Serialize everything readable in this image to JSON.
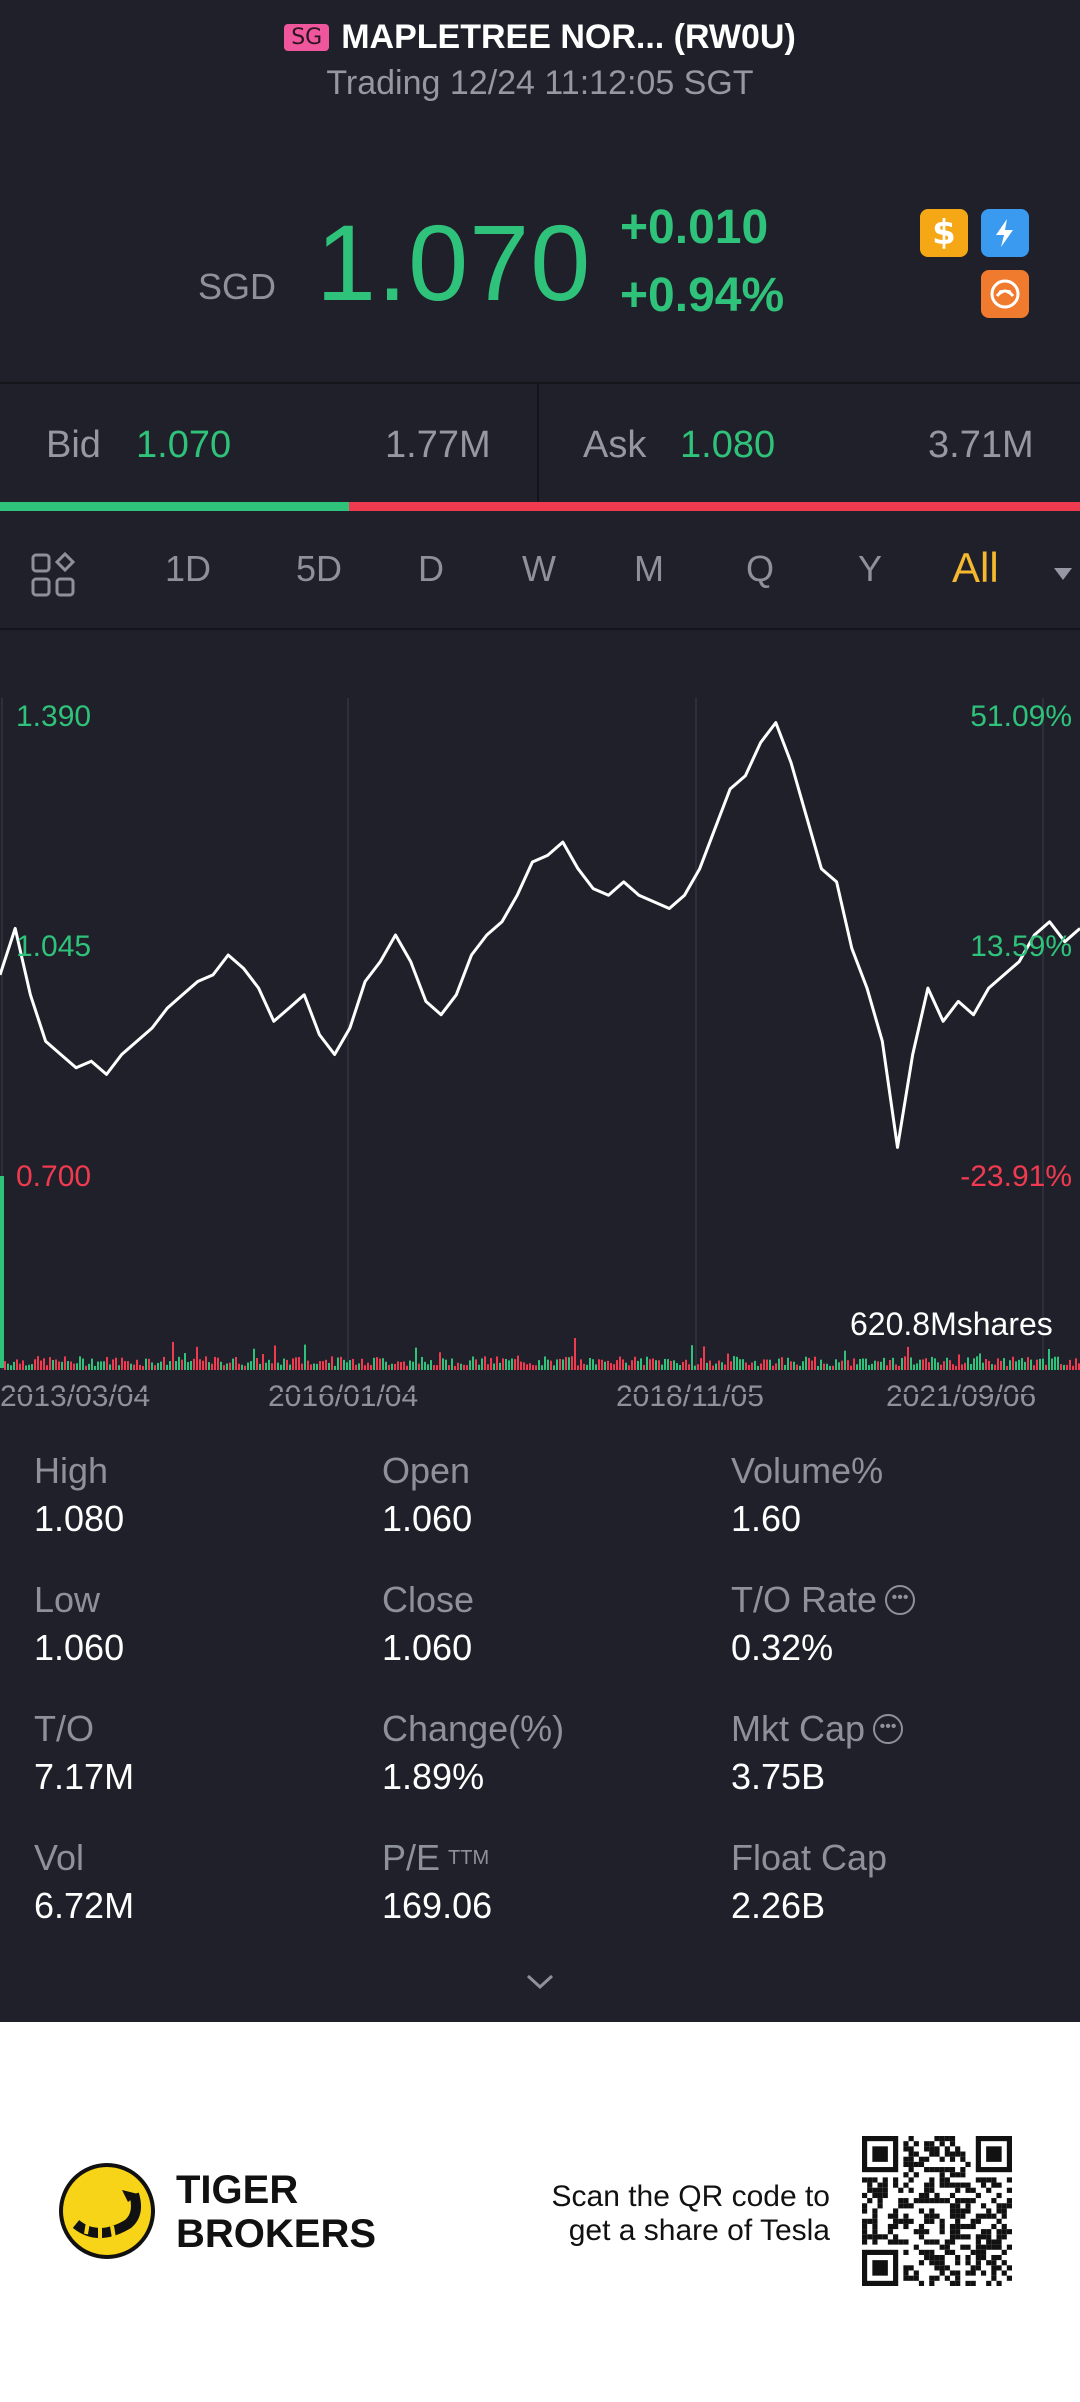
{
  "header": {
    "market_badge": "SG",
    "title": "MAPLETREE NOR... (RW0U)",
    "status": "Trading 12/24 11:12:05 SGT"
  },
  "quote": {
    "currency": "SGD",
    "price": "1.070",
    "change": "+0.010",
    "change_pct": "+0.94%",
    "price_color": "#2fc27a",
    "icons": [
      "dollar-icon",
      "flash-icon",
      "tiger-icon"
    ]
  },
  "bidask": {
    "bid_label": "Bid",
    "bid_price": "1.070",
    "bid_size": "1.77M",
    "ask_label": "Ask",
    "ask_price": "1.080",
    "ask_size": "3.71M",
    "bid_ratio": 0.323
  },
  "periods": {
    "items": [
      "1D",
      "5D",
      "D",
      "W",
      "M",
      "Q",
      "Y",
      "All"
    ],
    "active": "All"
  },
  "chart_data": {
    "type": "line",
    "y_labels": {
      "top": "1.390",
      "mid": "1.045",
      "bottom": "0.700"
    },
    "pct_labels": {
      "top": "51.09%",
      "mid": "13.59%",
      "bottom": "-23.91%"
    },
    "ylim": [
      0.7,
      1.39
    ],
    "x_ticks": [
      "2013/03/04",
      "2016/01/04",
      "2018/11/05",
      "2021/09/06"
    ],
    "volume_label": "620.8Mshares",
    "series": [
      {
        "values": [
          1.0,
          1.07,
          0.97,
          0.9,
          0.88,
          0.86,
          0.87,
          0.85,
          0.88,
          0.9,
          0.92,
          0.95,
          0.97,
          0.99,
          1.0,
          1.03,
          1.01,
          0.98,
          0.93,
          0.95,
          0.97,
          0.91,
          0.88,
          0.92,
          0.99,
          1.02,
          1.06,
          1.02,
          0.96,
          0.94,
          0.97,
          1.03,
          1.06,
          1.08,
          1.12,
          1.17,
          1.18,
          1.2,
          1.16,
          1.13,
          1.12,
          1.14,
          1.12,
          1.11,
          1.1,
          1.12,
          1.16,
          1.22,
          1.28,
          1.3,
          1.35,
          1.38,
          1.32,
          1.24,
          1.16,
          1.14,
          1.04,
          0.98,
          0.9,
          0.74,
          0.88,
          0.98,
          0.93,
          0.96,
          0.94,
          0.98,
          1.0,
          1.02,
          1.06,
          1.08,
          1.05,
          1.07
        ]
      }
    ],
    "colors": {
      "line": "#ffffff",
      "up": "#2fc27a",
      "down": "#f03a50"
    }
  },
  "stats": [
    {
      "label": "High",
      "value": "1.080"
    },
    {
      "label": "Open",
      "value": "1.060"
    },
    {
      "label": "Volume%",
      "value": "1.60"
    },
    {
      "label": "Low",
      "value": "1.060"
    },
    {
      "label": "Close",
      "value": "1.060"
    },
    {
      "label": "T/O Rate",
      "value": "0.32%"
    },
    {
      "label": "T/O",
      "value": "7.17M"
    },
    {
      "label": "Change(%)",
      "value": "1.89%"
    },
    {
      "label": "Mkt Cap",
      "value": "3.75B"
    },
    {
      "label": "Vol",
      "value": "6.72M"
    },
    {
      "label": "P/E",
      "label_sup": "TTM",
      "value": "169.06"
    },
    {
      "label": "Float Cap",
      "value": "2.26B"
    }
  ],
  "footer": {
    "brand_line1": "TIGER",
    "brand_line2": "BROKERS",
    "scan_line1": "Scan the QR code to",
    "scan_line2": "get a share of Tesla"
  }
}
